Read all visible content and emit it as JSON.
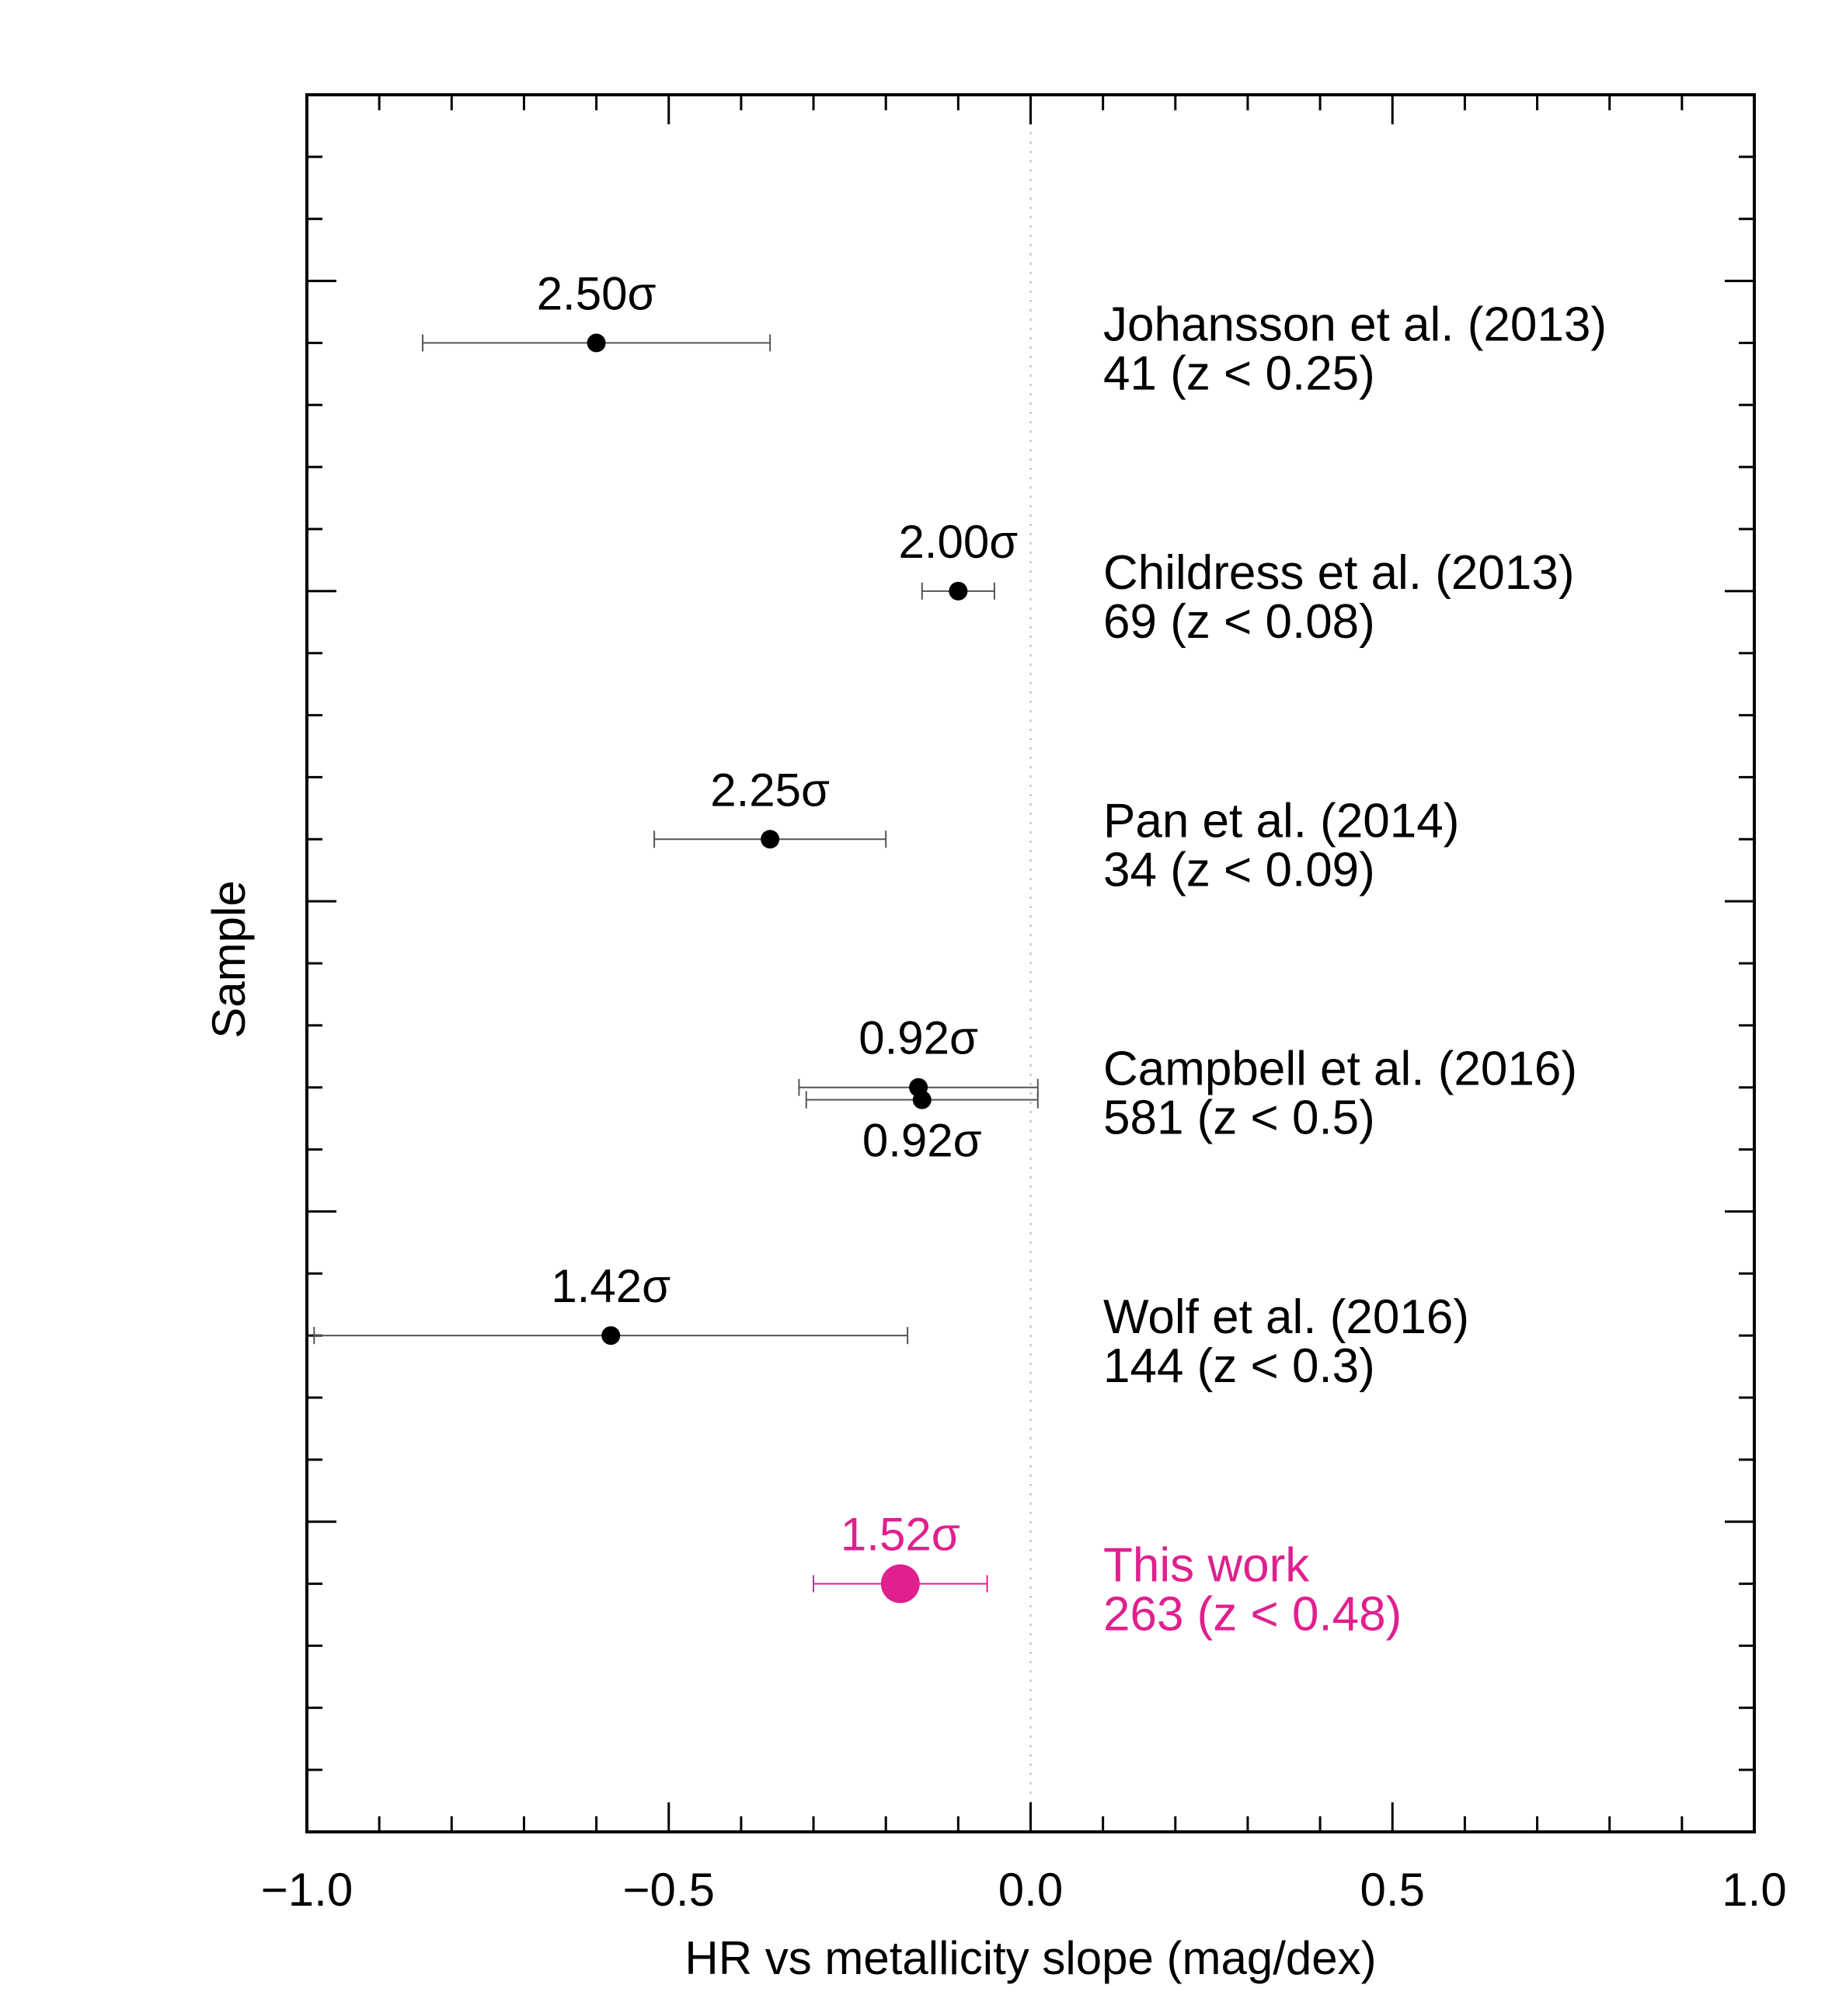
{
  "chart_data": {
    "type": "scatter",
    "title": "",
    "xlabel": "HR vs metallicity slope (mag/dex)",
    "ylabel": "Sample",
    "xlim": [
      -1.0,
      1.0
    ],
    "xticks": [
      -1.0,
      -0.5,
      0.0,
      0.5,
      1.0
    ],
    "x_tick_labels": [
      "−1.0",
      "−0.5",
      "0.0",
      "0.5",
      "1.0"
    ],
    "x_minor_step": 0.1,
    "ylim": [
      0,
      5.6
    ],
    "y_major_ticks": [
      1,
      2,
      3,
      4,
      5
    ],
    "y_minor_step": 0.2,
    "reference_line": {
      "x": 0.0,
      "style": "dotted"
    },
    "points": [
      {
        "x": -0.6,
        "xerr_low": 0.24,
        "xerr_high": 0.24,
        "y": 4.8,
        "sig_label": "2.50σ",
        "label_pos": "above",
        "name": "Johansson et al. (2013)",
        "detail": "41 (z < 0.25)",
        "color": "#000000",
        "highlight": false
      },
      {
        "x": -0.1,
        "xerr_low": 0.05,
        "xerr_high": 0.05,
        "y": 4.0,
        "sig_label": "2.00σ",
        "label_pos": "above",
        "name": "Childress et al. (2013)",
        "detail": "69 (z < 0.08)",
        "color": "#000000",
        "highlight": false
      },
      {
        "x": -0.36,
        "xerr_low": 0.16,
        "xerr_high": 0.16,
        "y": 3.2,
        "sig_label": "2.25σ",
        "label_pos": "above",
        "name": "Pan et al. (2014)",
        "detail": "34 (z < 0.09)",
        "color": "#000000",
        "highlight": false
      },
      {
        "x": -0.155,
        "xerr_low": 0.165,
        "xerr_high": 0.165,
        "y": 2.4,
        "sig_label": "0.92σ",
        "label_pos": "above",
        "name": "Campbell et al. (2016)",
        "detail": "581 (z < 0.5)",
        "color": "#000000",
        "highlight": false
      },
      {
        "x": -0.15,
        "xerr_low": 0.16,
        "xerr_high": 0.16,
        "y": 2.36,
        "sig_label": "0.92σ",
        "label_pos": "below",
        "name": "",
        "detail": "",
        "color": "#000000",
        "highlight": false
      },
      {
        "x": -0.58,
        "xerr_low": 0.41,
        "xerr_high": 0.41,
        "y": 1.6,
        "sig_label": "1.42σ",
        "label_pos": "above",
        "name": "Wolf et al. (2016)",
        "detail": "144 (z < 0.3)",
        "color": "#000000",
        "highlight": false
      },
      {
        "x": -0.18,
        "xerr_low": 0.12,
        "xerr_high": 0.12,
        "y": 0.8,
        "sig_label": "1.52σ",
        "label_pos": "above",
        "name": "This work",
        "detail": "263 (z < 0.48)",
        "color": "#e0208f",
        "highlight": true
      }
    ]
  }
}
